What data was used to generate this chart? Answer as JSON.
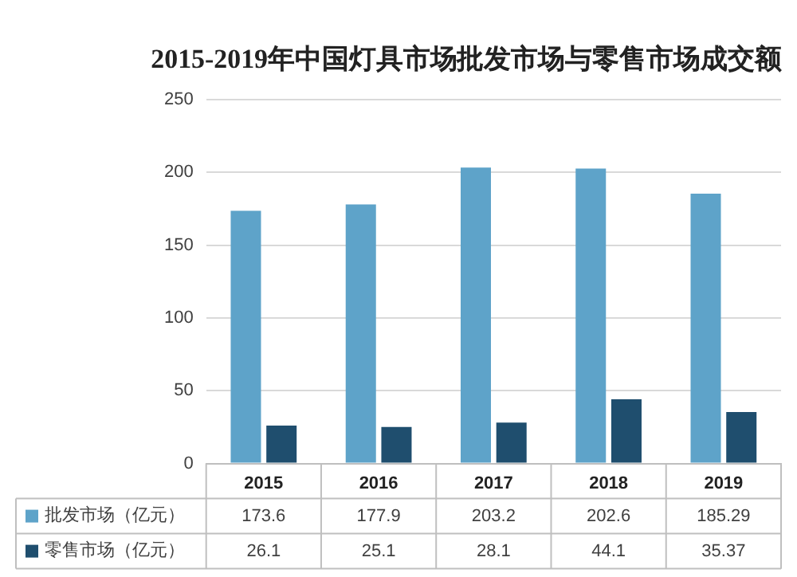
{
  "chart_data": {
    "type": "bar",
    "title": "2015-2019年中国灯具市场批发市场与零售市场成交额",
    "categories": [
      "2015",
      "2016",
      "2017",
      "2018",
      "2019"
    ],
    "series": [
      {
        "name": "批发市场（亿元）",
        "color": "#5ea3c9",
        "values": [
          173.6,
          177.9,
          203.2,
          202.6,
          185.29
        ]
      },
      {
        "name": "零售市场（亿元）",
        "color": "#1f4e6e",
        "values": [
          26.1,
          25.1,
          28.1,
          44.1,
          35.37
        ]
      }
    ],
    "ylim": [
      0,
      250
    ],
    "yticks": [
      0,
      50,
      100,
      150,
      200,
      250
    ],
    "grid": "y",
    "legend": "bottom",
    "data_labels": true
  }
}
